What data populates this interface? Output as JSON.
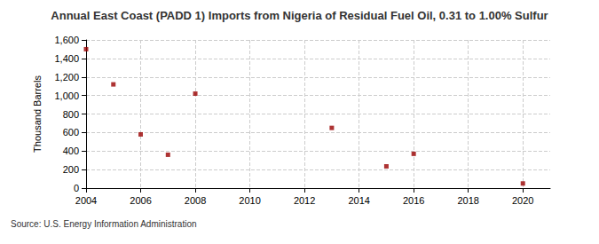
{
  "chart_data": {
    "type": "scatter",
    "title": "Annual East Coast (PADD 1) Imports from Nigeria of Residual Fuel Oil, 0.31 to 1.00% Sulfur",
    "y_label": "Thousand Barrels",
    "source": "Source: U.S. Energy Information Administration",
    "x": [
      2004,
      2005,
      2006,
      2007,
      2008,
      2013,
      2015,
      2016,
      2020
    ],
    "values": [
      1500,
      1120,
      580,
      360,
      1020,
      650,
      235,
      370,
      50
    ],
    "color": "#990000",
    "marker": "square",
    "xlim": [
      2004,
      2021
    ],
    "xticks": [
      2004,
      2006,
      2008,
      2010,
      2012,
      2014,
      2016,
      2018,
      2020
    ],
    "ylim": [
      0,
      1600
    ],
    "yticks": [
      0,
      200,
      400,
      600,
      800,
      {
        "value": 1000,
        "label": "1,000"
      },
      {
        "value": 1200,
        "label": "1,200"
      },
      {
        "value": 1400,
        "label": "1,400"
      },
      {
        "value": 1600,
        "label": "1,600"
      }
    ],
    "grid": true
  }
}
